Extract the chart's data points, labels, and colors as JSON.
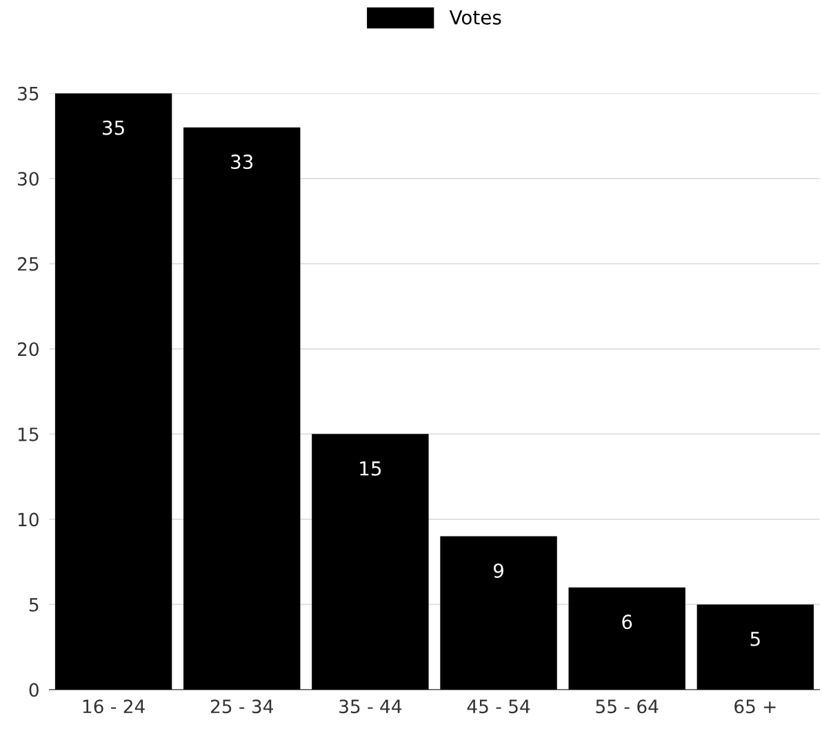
{
  "chart_data": {
    "type": "bar",
    "categories": [
      "16 - 24",
      "25 - 34",
      "35 - 44",
      "45 - 54",
      "55 - 64",
      "65 +"
    ],
    "series": [
      {
        "name": "Votes",
        "color": "#000000",
        "values": [
          35,
          33,
          15,
          9,
          6,
          5
        ]
      }
    ],
    "ylim": [
      0,
      35
    ],
    "yticks": [
      0,
      5,
      10,
      15,
      20,
      25,
      30,
      35
    ],
    "grid": "y",
    "legend": "top",
    "data_labels": true
  }
}
